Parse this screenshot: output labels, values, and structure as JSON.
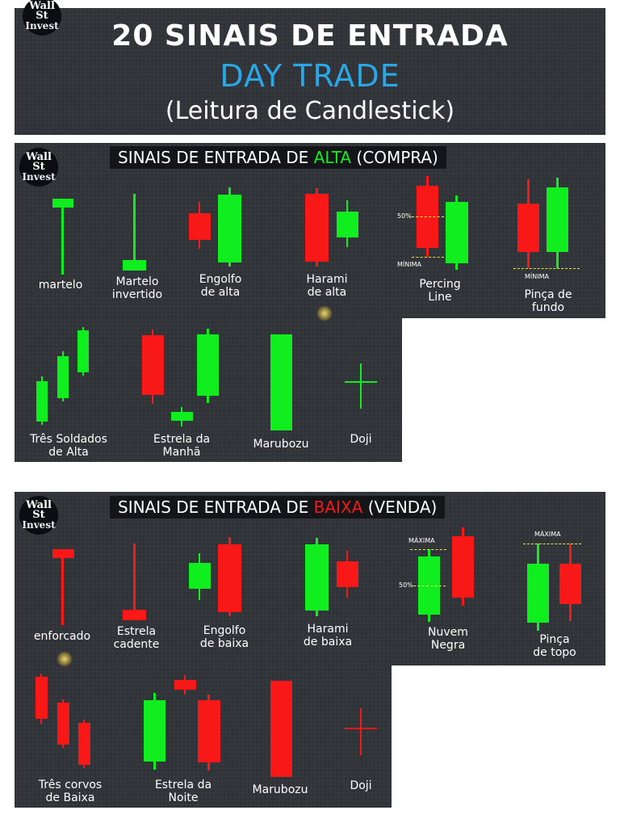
{
  "header": {
    "logo_line1": "Wall St",
    "logo_line2": "Invest",
    "title": "20 SINAIS DE ENTRADA",
    "subtitle": "DAY TRADE",
    "caption": "(Leitura de Candlestick)",
    "subtitle_color": "#2aa7e6"
  },
  "alta": {
    "logo_line1": "Wall St",
    "logo_line2": "Invest",
    "title_prefix": "SINAIS DE ENTRADA DE ",
    "title_word": "ALTA",
    "title_suffix": " (COMPRA)",
    "word_color": "#14ee20",
    "patterns": {
      "martelo": "martelo",
      "martelo_invertido": "Martelo\ninvertido",
      "engolfo": "Engolfo\nde alta",
      "harami": "Harami\nde alta",
      "percing": "Percing\nLine",
      "pinca": "Pinça de\nfundo",
      "soldados": "Três Soldados\nde Alta",
      "estrela": "Estrela da\nManhã",
      "marubozu": "Marubozu",
      "doji": "Doji"
    },
    "marks": {
      "p50": "50%",
      "minima": "MÍNIMA",
      "minima2": "MÍNIMA"
    }
  },
  "baixa": {
    "logo_line1": "Wall St",
    "logo_line2": "Invest",
    "title_prefix": "SINAIS DE ENTRADA DE ",
    "title_word": "BAIXA",
    "title_suffix": " (VENDA)",
    "word_color": "#f81818",
    "patterns": {
      "enforcado": "enforcado",
      "estrela_cadente": "Estrela\ncadente",
      "engolfo": "Engolfo\nde baixa",
      "harami": "Harami\nde baixa",
      "nuvem": "Nuvem\nNegra",
      "pinca": "Pinça\nde topo",
      "corvos": "Três corvos\nde Baixa",
      "estrela": "Estrela da\nNoite",
      "marubozu": "Marubozu",
      "doji": "Doji"
    },
    "marks": {
      "maxima": "MÁXIMA",
      "p50": "50%",
      "maxima2": "MÁXIMA"
    }
  }
}
